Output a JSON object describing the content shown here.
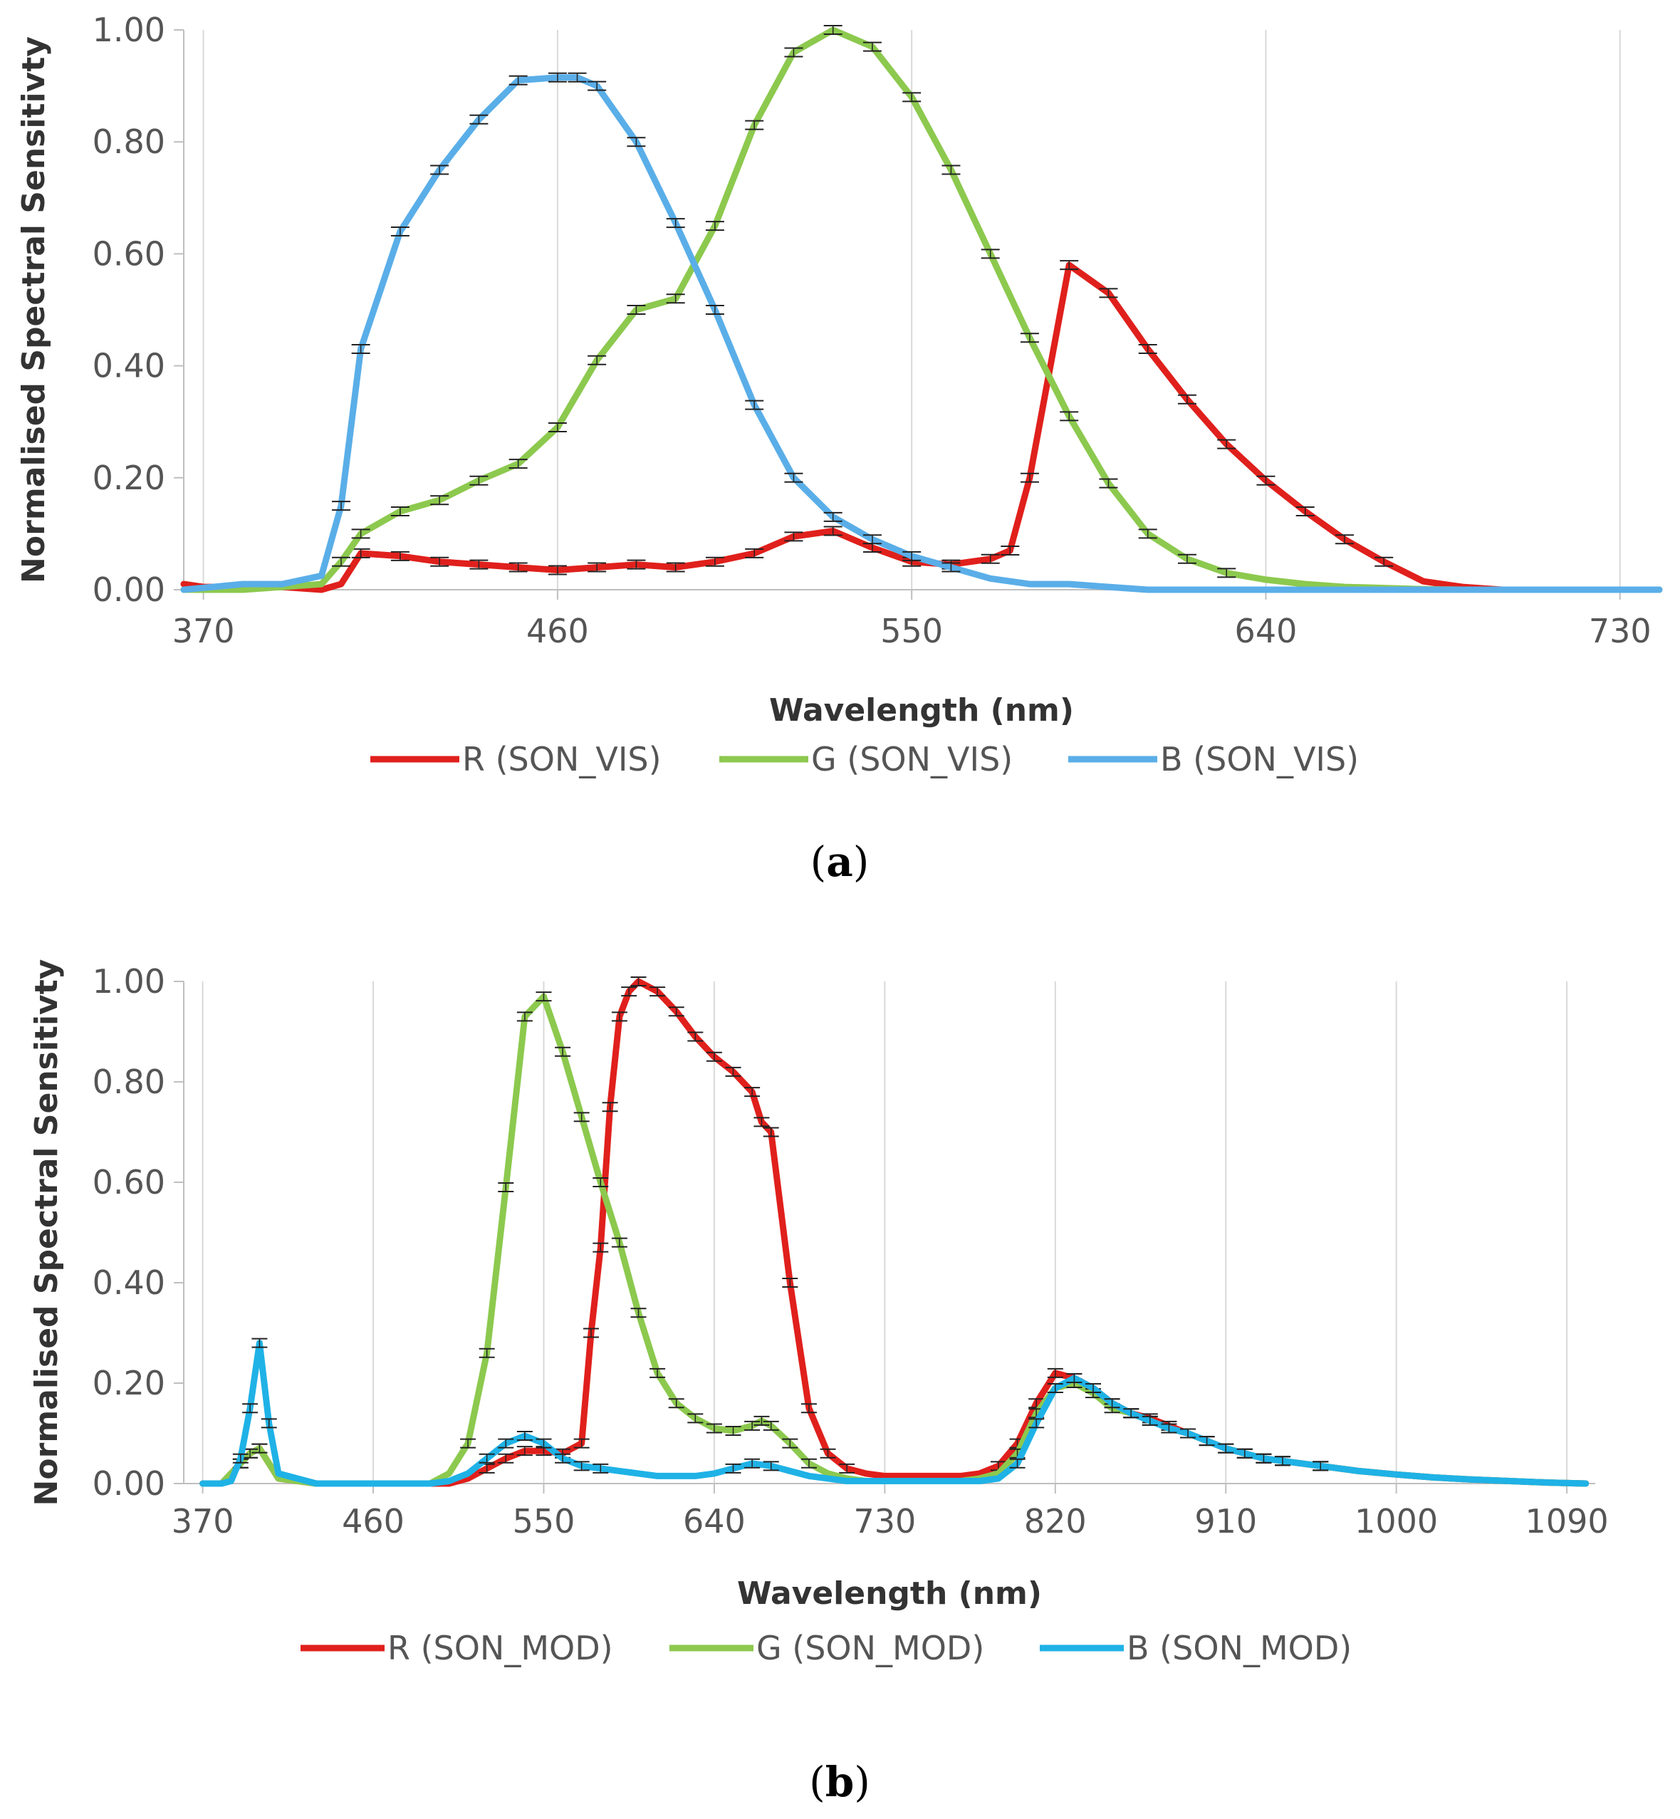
{
  "chart_data": [
    {
      "type": "line",
      "caption_open": "(",
      "caption_letter": "a",
      "caption_close": ")",
      "xlabel": "Wavelength (nm)",
      "ylabel": "Normalised Spectral Sensitivty",
      "xlim": [
        365,
        740
      ],
      "ylim": [
        0,
        1
      ],
      "grid": "vertical",
      "legend_position": "bottom",
      "xticks": [
        370,
        460,
        550,
        640,
        730
      ],
      "xtick_labels": [
        "370",
        "460",
        "550",
        "640",
        "730"
      ],
      "yticks": [
        0,
        0.2,
        0.4,
        0.6,
        0.8,
        1.0
      ],
      "ytick_labels": [
        "0.00",
        "0.20",
        "0.40",
        "0.60",
        "0.80",
        "1.00"
      ],
      "series": [
        {
          "name": "R (SON_VIS)",
          "color": "#e0201c",
          "x": [
            365,
            370,
            380,
            390,
            400,
            405,
            410,
            420,
            430,
            440,
            450,
            460,
            470,
            480,
            490,
            500,
            510,
            520,
            530,
            540,
            550,
            560,
            570,
            575,
            580,
            590,
            600,
            610,
            620,
            630,
            640,
            650,
            660,
            670,
            680,
            690,
            700,
            710,
            740
          ],
          "y": [
            0.01,
            0.005,
            0.005,
            0.005,
            0.0,
            0.01,
            0.065,
            0.06,
            0.05,
            0.045,
            0.04,
            0.035,
            0.04,
            0.045,
            0.04,
            0.05,
            0.065,
            0.095,
            0.105,
            0.075,
            0.05,
            0.045,
            0.055,
            0.07,
            0.2,
            0.58,
            0.53,
            0.43,
            0.34,
            0.26,
            0.195,
            0.14,
            0.09,
            0.05,
            0.015,
            0.005,
            0.0,
            0.0,
            0.0
          ]
        },
        {
          "name": "G (SON_VIS)",
          "color": "#8cc94e",
          "x": [
            365,
            380,
            390,
            400,
            405,
            410,
            420,
            430,
            440,
            450,
            460,
            470,
            480,
            490,
            500,
            510,
            520,
            530,
            540,
            550,
            560,
            570,
            580,
            590,
            600,
            610,
            620,
            630,
            640,
            650,
            660,
            670,
            680,
            690,
            740
          ],
          "y": [
            0.0,
            0.0,
            0.005,
            0.01,
            0.05,
            0.1,
            0.14,
            0.16,
            0.195,
            0.225,
            0.29,
            0.41,
            0.5,
            0.52,
            0.65,
            0.83,
            0.96,
            1.0,
            0.97,
            0.88,
            0.75,
            0.6,
            0.45,
            0.31,
            0.19,
            0.1,
            0.055,
            0.03,
            0.018,
            0.01,
            0.005,
            0.003,
            0.001,
            0.0,
            0.0
          ]
        },
        {
          "name": "B (SON_VIS)",
          "color": "#5aaee8",
          "x": [
            365,
            380,
            390,
            400,
            405,
            410,
            420,
            430,
            440,
            450,
            460,
            465,
            470,
            480,
            490,
            500,
            510,
            520,
            530,
            540,
            550,
            560,
            570,
            580,
            590,
            600,
            610,
            640,
            740
          ],
          "y": [
            0.0,
            0.01,
            0.01,
            0.025,
            0.15,
            0.43,
            0.64,
            0.75,
            0.84,
            0.91,
            0.915,
            0.915,
            0.9,
            0.8,
            0.655,
            0.5,
            0.33,
            0.2,
            0.13,
            0.09,
            0.06,
            0.04,
            0.02,
            0.01,
            0.01,
            0.005,
            0.0,
            0.0,
            0.0
          ]
        }
      ]
    },
    {
      "type": "line",
      "caption_open": "(",
      "caption_letter": "b",
      "caption_close": ")",
      "xlabel": "Wavelength (nm)",
      "ylabel": "Normalised Spectral Sensitivty",
      "xlim": [
        360,
        1105
      ],
      "ylim": [
        0,
        1
      ],
      "grid": "vertical",
      "legend_position": "bottom",
      "xticks": [
        370,
        460,
        550,
        640,
        730,
        820,
        910,
        1000,
        1090
      ],
      "xtick_labels": [
        "370",
        "460",
        "550",
        "640",
        "730",
        "820",
        "910",
        "1000",
        "1090"
      ],
      "yticks": [
        0,
        0.2,
        0.4,
        0.6,
        0.8,
        1.0
      ],
      "ytick_labels": [
        "0.00",
        "0.20",
        "0.40",
        "0.60",
        "0.80",
        "1.00"
      ],
      "series": [
        {
          "name": "R (SON_MOD)",
          "color": "#e0201c",
          "x": [
            370,
            380,
            385,
            390,
            395,
            400,
            410,
            430,
            490,
            500,
            510,
            520,
            530,
            540,
            550,
            560,
            570,
            575,
            580,
            585,
            590,
            595,
            600,
            610,
            620,
            630,
            640,
            650,
            660,
            665,
            670,
            680,
            690,
            700,
            710,
            720,
            730,
            770,
            780,
            790,
            800,
            810,
            820,
            830,
            840,
            850,
            860,
            870,
            880,
            890,
            900,
            910,
            920,
            930,
            940,
            960,
            980,
            1000,
            1020,
            1040,
            1060,
            1080,
            1100
          ],
          "y": [
            0.0,
            0.0,
            0.02,
            0.04,
            0.06,
            0.07,
            0.01,
            0.0,
            0.0,
            0.0,
            0.01,
            0.03,
            0.05,
            0.065,
            0.065,
            0.06,
            0.08,
            0.3,
            0.47,
            0.75,
            0.93,
            0.98,
            1.0,
            0.98,
            0.94,
            0.89,
            0.85,
            0.82,
            0.78,
            0.72,
            0.7,
            0.4,
            0.15,
            0.06,
            0.03,
            0.02,
            0.015,
            0.015,
            0.02,
            0.035,
            0.08,
            0.16,
            0.22,
            0.21,
            0.19,
            0.16,
            0.14,
            0.13,
            0.115,
            0.1,
            0.085,
            0.07,
            0.06,
            0.05,
            0.045,
            0.035,
            0.025,
            0.018,
            0.012,
            0.008,
            0.005,
            0.002,
            0.0
          ]
        },
        {
          "name": "G (SON_MOD)",
          "color": "#8cc94e",
          "x": [
            370,
            380,
            385,
            390,
            395,
            400,
            410,
            430,
            490,
            500,
            510,
            520,
            530,
            540,
            550,
            560,
            570,
            580,
            590,
            600,
            610,
            620,
            630,
            640,
            650,
            660,
            665,
            670,
            680,
            690,
            700,
            710,
            720,
            730,
            770,
            780,
            790,
            800,
            810,
            820,
            830,
            840,
            850,
            860,
            870,
            880,
            890,
            900,
            910,
            920,
            930,
            940,
            960,
            980,
            1000,
            1020,
            1040,
            1060,
            1080,
            1100
          ],
          "y": [
            0.0,
            0.0,
            0.02,
            0.04,
            0.06,
            0.07,
            0.01,
            0.0,
            0.0,
            0.02,
            0.08,
            0.26,
            0.59,
            0.93,
            0.97,
            0.86,
            0.73,
            0.6,
            0.48,
            0.34,
            0.22,
            0.16,
            0.13,
            0.11,
            0.105,
            0.115,
            0.125,
            0.115,
            0.08,
            0.04,
            0.02,
            0.01,
            0.005,
            0.005,
            0.005,
            0.01,
            0.02,
            0.06,
            0.14,
            0.19,
            0.2,
            0.18,
            0.15,
            0.14,
            0.125,
            0.11,
            0.1,
            0.085,
            0.07,
            0.06,
            0.05,
            0.045,
            0.035,
            0.025,
            0.018,
            0.012,
            0.008,
            0.005,
            0.002,
            0.0
          ]
        },
        {
          "name": "B (SON_MOD)",
          "color": "#1fb2e6",
          "x": [
            370,
            380,
            385,
            390,
            395,
            400,
            405,
            410,
            430,
            490,
            500,
            510,
            520,
            530,
            540,
            550,
            560,
            570,
            580,
            590,
            600,
            610,
            620,
            630,
            640,
            650,
            660,
            670,
            680,
            690,
            700,
            710,
            720,
            730,
            770,
            780,
            790,
            800,
            810,
            820,
            830,
            840,
            850,
            860,
            870,
            880,
            890,
            900,
            910,
            920,
            930,
            940,
            960,
            980,
            1000,
            1020,
            1040,
            1060,
            1080,
            1100
          ],
          "y": [
            0.0,
            0.0,
            0.005,
            0.05,
            0.15,
            0.28,
            0.12,
            0.02,
            0.0,
            0.0,
            0.005,
            0.02,
            0.05,
            0.08,
            0.095,
            0.08,
            0.05,
            0.035,
            0.03,
            0.025,
            0.02,
            0.015,
            0.015,
            0.015,
            0.02,
            0.03,
            0.04,
            0.035,
            0.025,
            0.015,
            0.01,
            0.005,
            0.005,
            0.005,
            0.005,
            0.005,
            0.01,
            0.04,
            0.12,
            0.19,
            0.21,
            0.19,
            0.16,
            0.14,
            0.125,
            0.11,
            0.1,
            0.085,
            0.07,
            0.06,
            0.05,
            0.045,
            0.035,
            0.025,
            0.018,
            0.012,
            0.008,
            0.005,
            0.002,
            0.0
          ]
        }
      ]
    }
  ]
}
